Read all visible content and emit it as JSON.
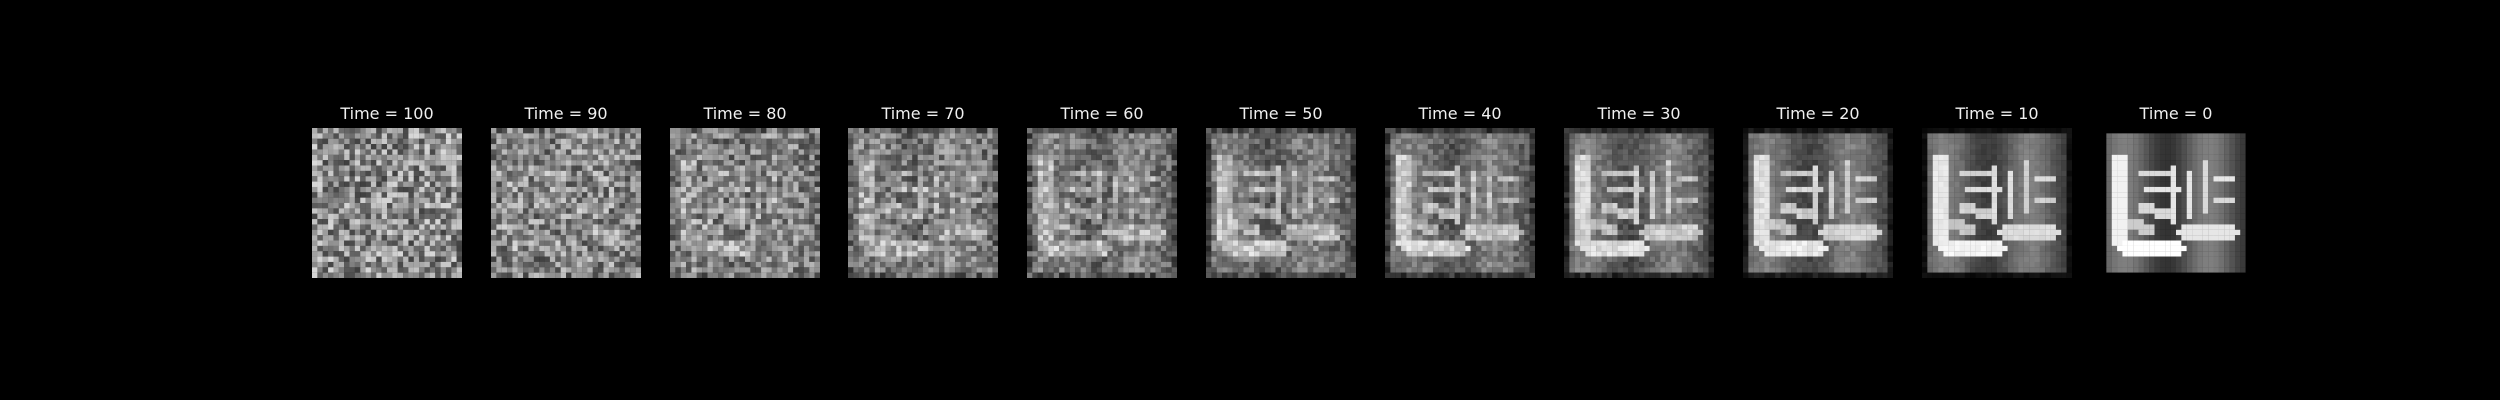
{
  "figure": {
    "background": "#000000",
    "title_color": "#f0f0f0",
    "panels": [
      {
        "title": "Time = 100",
        "noise_level": 1.0
      },
      {
        "title": "Time = 90",
        "noise_level": 0.9
      },
      {
        "title": "Time = 80",
        "noise_level": 0.8
      },
      {
        "title": "Time = 70",
        "noise_level": 0.7
      },
      {
        "title": "Time = 60",
        "noise_level": 0.6
      },
      {
        "title": "Time = 50",
        "noise_level": 0.5
      },
      {
        "title": "Time = 40",
        "noise_level": 0.4
      },
      {
        "title": "Time = 30",
        "noise_level": 0.3
      },
      {
        "title": "Time = 20",
        "noise_level": 0.2
      },
      {
        "title": "Time = 10",
        "noise_level": 0.1
      },
      {
        "title": "Time = 0",
        "noise_level": 0.0
      }
    ]
  }
}
